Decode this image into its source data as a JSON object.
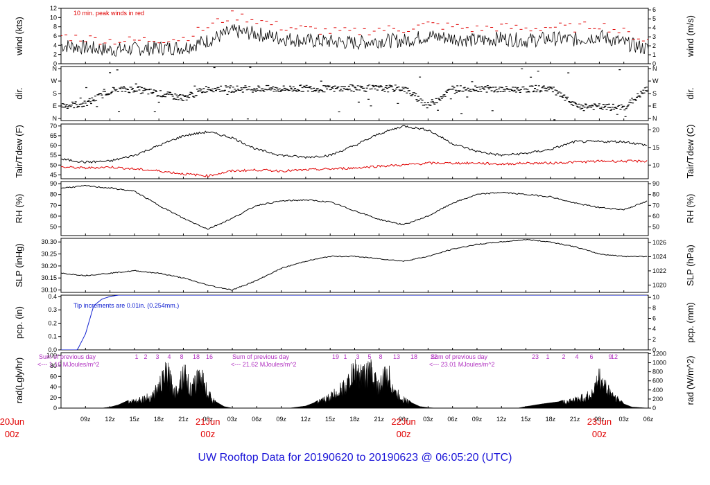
{
  "title": "UW Rooftop Data for 20190620  to  20190623 @ 06:05:20  (UTC)",
  "colors": {
    "black": "#000000",
    "red": "#e00000",
    "blue": "#1020d0",
    "magenta": "#b030c0",
    "title": "#1a14d8"
  },
  "time_axis": {
    "hour_ticks": [
      "09z",
      "12z",
      "15z",
      "18z",
      "21z",
      "00z",
      "03z",
      "06z",
      "09z",
      "12z",
      "15z",
      "18z",
      "21z",
      "00z",
      "03z",
      "06z",
      "09z",
      "12z",
      "15z",
      "18z",
      "21z",
      "00z",
      "03z",
      "06z"
    ],
    "day_labels": [
      {
        "day": "20Jun",
        "hour": "00z"
      },
      {
        "day": "21Jun",
        "hour": "00z"
      },
      {
        "day": "22Jun",
        "hour": "00z"
      },
      {
        "day": "23Jun",
        "hour": "00z"
      }
    ]
  },
  "chart_data": [
    {
      "type": "line",
      "name": "wind",
      "ylabel": "wind (kts)",
      "ylabel_right": "wind (m/s)",
      "ylim": [
        0,
        12
      ],
      "yticks": [
        "0",
        "2",
        "4",
        "6",
        "8",
        "10",
        "12"
      ],
      "yticks_right": [
        "0",
        "1",
        "2",
        "3",
        "4",
        "5",
        "6"
      ],
      "annotation": "10 min. peak winds in red",
      "series": [
        {
          "name": "wind speed (kts)",
          "color": "#000000",
          "x": [
            6,
            9,
            12,
            15,
            18,
            21,
            24,
            27,
            30,
            33,
            36,
            39,
            42,
            45,
            48,
            51,
            54,
            57,
            60,
            63,
            66,
            69,
            72,
            75,
            78
          ],
          "values": [
            4,
            3.5,
            3,
            3.2,
            3.4,
            3.5,
            5,
            7,
            6.5,
            5.5,
            5,
            4.8,
            4.5,
            5,
            5,
            6,
            5.5,
            5,
            5.5,
            5,
            5.5,
            5.2,
            6,
            4.5,
            3.2
          ]
        },
        {
          "name": "10 min. peak winds",
          "color": "#e00000",
          "x": [
            6,
            9,
            12,
            15,
            18,
            21,
            24,
            27,
            30,
            33,
            36,
            39,
            42,
            45,
            48,
            51,
            54,
            57,
            60,
            63,
            66,
            69,
            72,
            75,
            78
          ],
          "values": [
            6,
            5.5,
            5,
            5,
            5.3,
            5.5,
            8,
            10.5,
            9.5,
            8,
            7.5,
            7,
            6.8,
            7.5,
            7.5,
            8.5,
            8,
            7.5,
            8,
            7.5,
            8,
            7.8,
            8.5,
            6.8,
            5
          ]
        }
      ]
    },
    {
      "type": "scatter",
      "name": "dir",
      "ylabel": "dir.",
      "ylabel_right": "dir.",
      "ylim": [
        0,
        360
      ],
      "yticks": [
        "N",
        "E",
        "S",
        "W",
        "N"
      ],
      "yticks_right": [
        "N",
        "E",
        "S",
        "W",
        "N"
      ],
      "series": [
        {
          "name": "wind direction (deg)",
          "color": "#000000",
          "x": [
            6,
            9,
            12,
            15,
            18,
            21,
            24,
            27,
            30,
            33,
            36,
            39,
            42,
            45,
            48,
            51,
            54,
            57,
            60,
            63,
            66,
            69,
            72,
            75,
            78
          ],
          "values": [
            100,
            110,
            200,
            210,
            180,
            150,
            215,
            210,
            212,
            210,
            215,
            210,
            218,
            212,
            215,
            100,
            210,
            215,
            205,
            210,
            215,
            100,
            90,
            85,
            215
          ]
        }
      ]
    },
    {
      "type": "line",
      "name": "tair_tdew",
      "ylabel": "Tair/Tdew (F)",
      "ylabel_right": "Tair/Tdew (C)",
      "ylim": [
        43,
        71
      ],
      "yticks": [
        "45",
        "50",
        "55",
        "60",
        "65",
        "70"
      ],
      "yticks_right": [
        "10",
        "15",
        "20"
      ],
      "series": [
        {
          "name": "Tair",
          "color": "#000000",
          "x": [
            6,
            9,
            12,
            15,
            18,
            21,
            24,
            27,
            30,
            33,
            36,
            39,
            42,
            45,
            48,
            51,
            54,
            57,
            60,
            63,
            66,
            69,
            72,
            75,
            78
          ],
          "values": [
            53,
            51.5,
            52,
            55,
            60,
            65,
            67,
            64,
            58,
            55,
            54,
            55,
            60,
            66,
            70,
            68,
            61,
            57,
            55,
            56,
            58,
            62,
            62,
            62,
            60
          ]
        },
        {
          "name": "Tdew",
          "color": "#e00000",
          "x": [
            6,
            9,
            12,
            15,
            18,
            21,
            24,
            27,
            30,
            33,
            36,
            39,
            42,
            45,
            48,
            51,
            54,
            57,
            60,
            63,
            66,
            69,
            72,
            75,
            78
          ],
          "values": [
            49,
            48.5,
            49,
            48,
            47,
            45.5,
            44.5,
            47,
            47.5,
            47,
            47.5,
            48,
            48.5,
            49.5,
            50,
            51,
            51,
            51,
            50.5,
            51,
            51,
            51.5,
            52,
            52,
            52
          ]
        }
      ]
    },
    {
      "type": "line",
      "name": "rh",
      "ylabel": "RH (%)",
      "ylabel_right": "RH (%)",
      "ylim": [
        42,
        92
      ],
      "yticks": [
        "50",
        "60",
        "70",
        "80",
        "90"
      ],
      "yticks_right": [
        "50",
        "60",
        "70",
        "80",
        "90"
      ],
      "series": [
        {
          "name": "RH",
          "color": "#000000",
          "x": [
            6,
            9,
            12,
            15,
            18,
            21,
            24,
            27,
            30,
            33,
            36,
            39,
            42,
            45,
            48,
            51,
            54,
            57,
            60,
            63,
            66,
            69,
            72,
            75,
            78
          ],
          "values": [
            86,
            88,
            86,
            83,
            70,
            58,
            48,
            58,
            70,
            74,
            75,
            73,
            65,
            57,
            52,
            60,
            72,
            80,
            82,
            80,
            78,
            72,
            68,
            66,
            74
          ]
        }
      ]
    },
    {
      "type": "line",
      "name": "slp",
      "ylabel": "SLP (inHg)",
      "ylabel_right": "SLP (hPa)",
      "ylim": [
        30.09,
        30.315
      ],
      "yticks": [
        "30.10",
        "30.15",
        "30.20",
        "30.25",
        "30.30"
      ],
      "yticks_right": [
        "1020",
        "1022",
        "1024",
        "1026"
      ],
      "series": [
        {
          "name": "SLP",
          "color": "#000000",
          "x": [
            6,
            9,
            12,
            15,
            18,
            21,
            24,
            27,
            30,
            33,
            36,
            39,
            42,
            45,
            48,
            51,
            54,
            57,
            60,
            63,
            66,
            69,
            72,
            75,
            78
          ],
          "values": [
            30.17,
            30.16,
            30.17,
            30.18,
            30.17,
            30.15,
            30.12,
            30.1,
            30.14,
            30.19,
            30.22,
            30.24,
            30.24,
            30.23,
            30.22,
            30.24,
            30.27,
            30.29,
            30.3,
            30.31,
            30.3,
            30.28,
            30.25,
            30.24,
            30.24
          ]
        }
      ]
    },
    {
      "type": "line",
      "name": "pcp",
      "ylabel": "pcp. (in)",
      "ylabel_right": "pcp. (mm)",
      "ylim": [
        0,
        0.41
      ],
      "yticks": [
        "0.0",
        "0.1",
        "0.2",
        "0.3",
        "0.4"
      ],
      "yticks_right": [
        "0",
        "2",
        "4",
        "6",
        "8",
        "10"
      ],
      "annotation": "Tip increments are 0.01in. (0.254mm.)",
      "series": [
        {
          "name": "cumulative precip (in)",
          "color": "#1020d0",
          "x": [
            6,
            8,
            9,
            10,
            11,
            12,
            13,
            16,
            20,
            30,
            40,
            50,
            60,
            70,
            78
          ],
          "values": [
            0,
            0,
            0.12,
            0.33,
            0.38,
            0.4,
            0.41,
            0.41,
            0.41,
            0.41,
            0.41,
            0.41,
            0.41,
            0.41,
            0.41
          ]
        }
      ]
    },
    {
      "type": "area",
      "name": "rad",
      "ylabel": "rad(Lgly/hr)",
      "ylabel_right": "rad (W/m^2)",
      "ylim": [
        0,
        105
      ],
      "yticks": [
        "0",
        "20",
        "40",
        "60",
        "80",
        "100"
      ],
      "yticks_right": [
        "0",
        "200",
        "400",
        "600",
        "800",
        "1000",
        "1200"
      ],
      "series": [
        {
          "name": "solar radiation (Lgly/hr)",
          "color": "#000000",
          "x": [
            6,
            9,
            11,
            12,
            13,
            15,
            17,
            18,
            19,
            20,
            21,
            22,
            23,
            24,
            25,
            26,
            27,
            28,
            30,
            34,
            36,
            37,
            39,
            41,
            42,
            43,
            44,
            45,
            46,
            47,
            48,
            49,
            50,
            51,
            52,
            54,
            60,
            62,
            63,
            65,
            67,
            68,
            69,
            70,
            71,
            72,
            73,
            74,
            75,
            76,
            78
          ],
          "values": [
            0,
            0,
            0,
            2,
            6,
            20,
            30,
            55,
            95,
            40,
            97,
            45,
            95,
            40,
            12,
            3,
            0,
            0,
            0,
            0,
            4,
            10,
            30,
            60,
            100,
            85,
            98,
            55,
            95,
            40,
            25,
            10,
            3,
            1,
            0,
            0,
            0,
            0,
            3,
            8,
            12,
            18,
            22,
            28,
            35,
            80,
            50,
            30,
            8,
            2,
            0
          ]
        }
      ],
      "annotations": {
        "sums": [
          {
            "label": "Sum of previous day",
            "value": "<--- 1.16 MJoules/m^2"
          },
          {
            "label": "Sum of previous day",
            "value": "<--- 21.62 MJoules/m^2"
          },
          {
            "label": "Sum of previous day",
            "value": "<--- 23.01 MJoules/m^2"
          }
        ],
        "uv_marks": [
          "1",
          "2",
          "3",
          "4",
          "8",
          "18",
          "16",
          "19",
          "1",
          "3",
          "5",
          "8",
          "13",
          "18",
          "22",
          "23",
          "1",
          "2",
          "4",
          "6",
          "9",
          "12"
        ]
      }
    }
  ]
}
